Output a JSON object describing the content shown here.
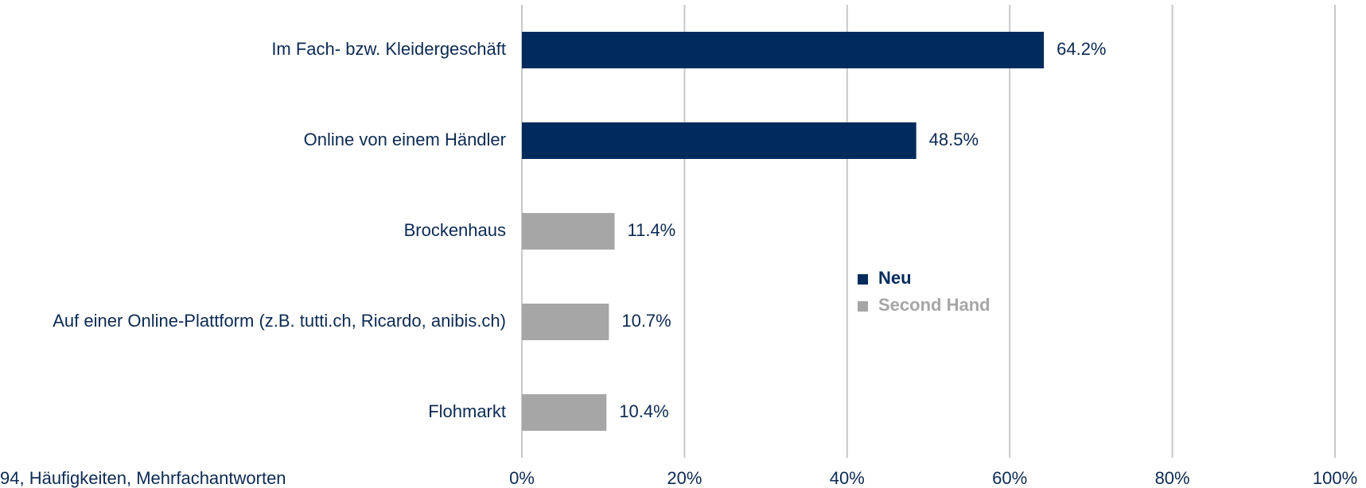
{
  "chart_data": {
    "type": "bar",
    "orientation": "horizontal",
    "categories": [
      "Im Fach- bzw. Kleidergeschäft",
      "Online von einem Händler",
      "Brockenhaus",
      "Auf einer Online-Plattform (z.B. tutti.ch, Ricardo, anibis.ch)",
      "Flohmarkt"
    ],
    "series": [
      {
        "name": "Neu",
        "color": "#002b5c",
        "values": [
          64.2,
          48.5,
          null,
          null,
          null
        ],
        "value_labels": [
          "64.2%",
          "48.5%",
          null,
          null,
          null
        ]
      },
      {
        "name": "Second Hand",
        "color": "#a6a6a6",
        "values": [
          null,
          null,
          11.4,
          10.7,
          10.4
        ],
        "value_labels": [
          null,
          null,
          "11.4%",
          "10.7%",
          "10.4%"
        ]
      }
    ],
    "xlim": [
      0,
      100
    ],
    "xticks": [
      {
        "value": 0,
        "label": "0%"
      },
      {
        "value": 20,
        "label": "20%"
      },
      {
        "value": 40,
        "label": "40%"
      },
      {
        "value": 60,
        "label": "60%"
      },
      {
        "value": 80,
        "label": "80%"
      },
      {
        "value": 100,
        "label": "100%"
      }
    ],
    "grid": true,
    "legend": "center",
    "footnote": "94, Häufigkeiten, Mehrfachantworten"
  }
}
